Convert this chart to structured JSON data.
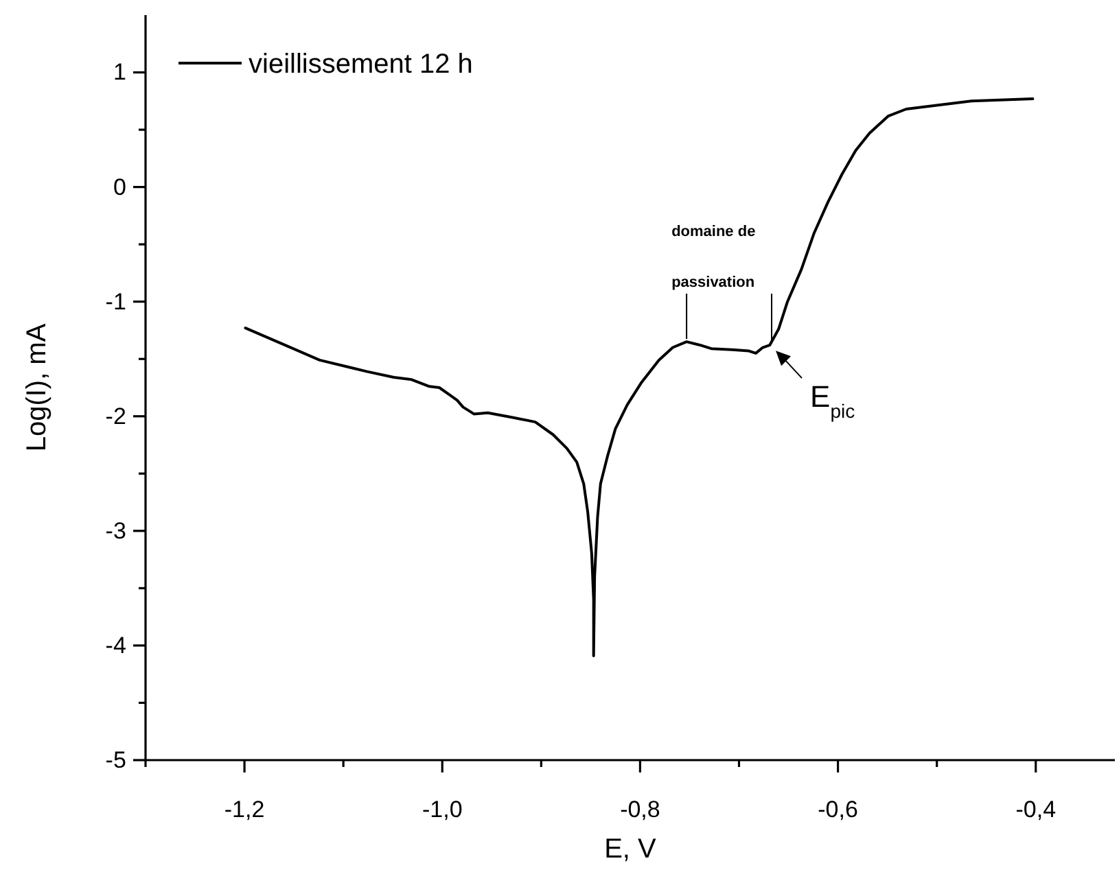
{
  "chart_data": {
    "type": "line",
    "xlabel": "E, V",
    "ylabel": "Log(I), mA",
    "xlim": [
      -1.3,
      -0.32
    ],
    "xticks": [
      {
        "value": -1.3,
        "label": null
      },
      {
        "value": -1.2,
        "label": "-1,2"
      },
      {
        "value": -1.1,
        "label": null
      },
      {
        "value": -1.0,
        "label": "-1,0"
      },
      {
        "value": -0.9,
        "label": null
      },
      {
        "value": -0.8,
        "label": "-0,8"
      },
      {
        "value": -0.7,
        "label": null
      },
      {
        "value": -0.6,
        "label": "-0,6"
      },
      {
        "value": -0.5,
        "label": null
      },
      {
        "value": -0.4,
        "label": "-0,4"
      }
    ],
    "ylim": [
      -5,
      1.5
    ],
    "yticks": [
      -5,
      {
        "value": -4.5,
        "label": null
      },
      -4,
      {
        "value": -3.5,
        "label": null
      },
      -3,
      {
        "value": -2.5,
        "label": null
      },
      -2,
      {
        "value": -1.5,
        "label": null
      },
      -1,
      {
        "value": -0.5,
        "label": null
      },
      0,
      {
        "value": 0.5,
        "label": null
      },
      1
    ],
    "legend": "top left",
    "grid": false,
    "marker": "none",
    "line_style": "solid",
    "series": [
      {
        "name": "vieillissement 12 h",
        "color": "#000000",
        "x": [
          -1.199,
          -1.156,
          -1.124,
          -1.076,
          -1.049,
          -1.031,
          -1.013,
          -1.003,
          -0.993,
          -0.985,
          -0.979,
          -0.968,
          -0.954,
          -0.929,
          -0.906,
          -0.888,
          -0.874,
          -0.864,
          -0.857,
          -0.853,
          -0.849,
          -0.847,
          -0.847,
          -0.846,
          -0.843,
          -0.84,
          -0.833,
          -0.825,
          -0.813,
          -0.799,
          -0.781,
          -0.767,
          -0.753,
          -0.739,
          -0.728,
          -0.707,
          -0.69,
          -0.683,
          -0.676,
          -0.669,
          -0.66,
          -0.651,
          -0.637,
          -0.624,
          -0.61,
          -0.596,
          -0.582,
          -0.568,
          -0.549,
          -0.531,
          -0.503,
          -0.465,
          -0.403
        ],
        "values": [
          -1.23,
          -1.39,
          -1.51,
          -1.61,
          -1.66,
          -1.68,
          -1.74,
          -1.75,
          -1.81,
          -1.86,
          -1.92,
          -1.98,
          -1.97,
          -2.01,
          -2.05,
          -2.16,
          -2.28,
          -2.4,
          -2.59,
          -2.83,
          -3.19,
          -3.6,
          -4.09,
          -3.4,
          -2.88,
          -2.59,
          -2.35,
          -2.11,
          -1.9,
          -1.71,
          -1.51,
          -1.4,
          -1.35,
          -1.38,
          -1.41,
          -1.42,
          -1.43,
          -1.45,
          -1.4,
          -1.38,
          -1.24,
          -1.0,
          -0.72,
          -0.4,
          -0.13,
          0.11,
          0.32,
          0.47,
          0.62,
          0.68,
          0.71,
          0.75,
          0.77
        ]
      }
    ],
    "annotations": [
      "domaine de passivation",
      {
        "text": "E$_{pic}$",
        "x": -0.667,
        "y": -1.38
      }
    ]
  }
}
